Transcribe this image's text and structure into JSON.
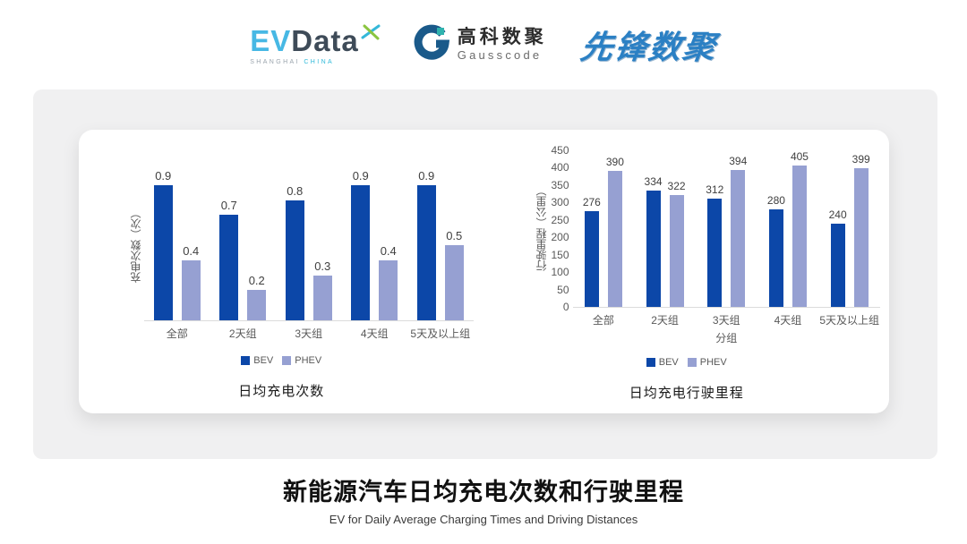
{
  "header": {
    "evdata": {
      "ev": "EV",
      "data": "Data",
      "sub_left": "SHANGHAI",
      "sub_right": "CHINA"
    },
    "gausscode": {
      "cn": "高科数聚",
      "en": "Gausscode"
    },
    "pioneer": {
      "text": "先锋数聚"
    }
  },
  "colors": {
    "series": [
      "#0C47A8",
      "#96A0D2"
    ],
    "panel_bg": "#F0F0F1",
    "axis_line": "#DBDBDB",
    "axis_text": "#595959",
    "value_label": "#3F3F3F",
    "evdata_ev": "#47B8E4",
    "evdata_data": "#3E4B58",
    "pioneer_blue": "#2B80C4"
  },
  "chart_data": [
    {
      "type": "bar",
      "title": "日均充电次数",
      "ylabel": "充电次数（次）",
      "xlabel": "",
      "categories": [
        "全部",
        "2天组",
        "3天组",
        "4天组",
        "5天及以上组"
      ],
      "series": [
        {
          "name": "BEV",
          "values": [
            0.9,
            0.7,
            0.8,
            0.9,
            0.9
          ],
          "labels": [
            "0.9",
            "0.7",
            "0.8",
            "0.9",
            "0.9"
          ]
        },
        {
          "name": "PHEV",
          "values": [
            0.4,
            0.2,
            0.3,
            0.4,
            0.5
          ],
          "labels": [
            "0.4",
            "0.2",
            "0.3",
            "0.4",
            "0.5"
          ]
        }
      ],
      "ylim": [
        0,
        1.0
      ],
      "yticks": null,
      "grid": false,
      "legend_position": "bottom"
    },
    {
      "type": "bar",
      "title": "日均充电行驶里程",
      "ylabel": "行驶里程（公里）",
      "xlabel": "分组",
      "categories": [
        "全部",
        "2天组",
        "3天组",
        "4天组",
        "5天及以上组"
      ],
      "series": [
        {
          "name": "BEV",
          "values": [
            276,
            334,
            312,
            280,
            240
          ],
          "labels": [
            "276",
            "334",
            "312",
            "280",
            "240"
          ]
        },
        {
          "name": "PHEV",
          "values": [
            390,
            322,
            394,
            405,
            399
          ],
          "labels": [
            "390",
            "322",
            "394",
            "405",
            "399"
          ]
        }
      ],
      "ylim": [
        0,
        450
      ],
      "yticks": [
        0,
        50,
        100,
        150,
        200,
        250,
        300,
        350,
        400,
        450
      ],
      "grid": false,
      "legend_position": "bottom"
    }
  ],
  "footer": {
    "title": "新能源汽车日均充电次数和行驶里程",
    "subtitle": "EV for Daily Average Charging Times and Driving Distances"
  }
}
